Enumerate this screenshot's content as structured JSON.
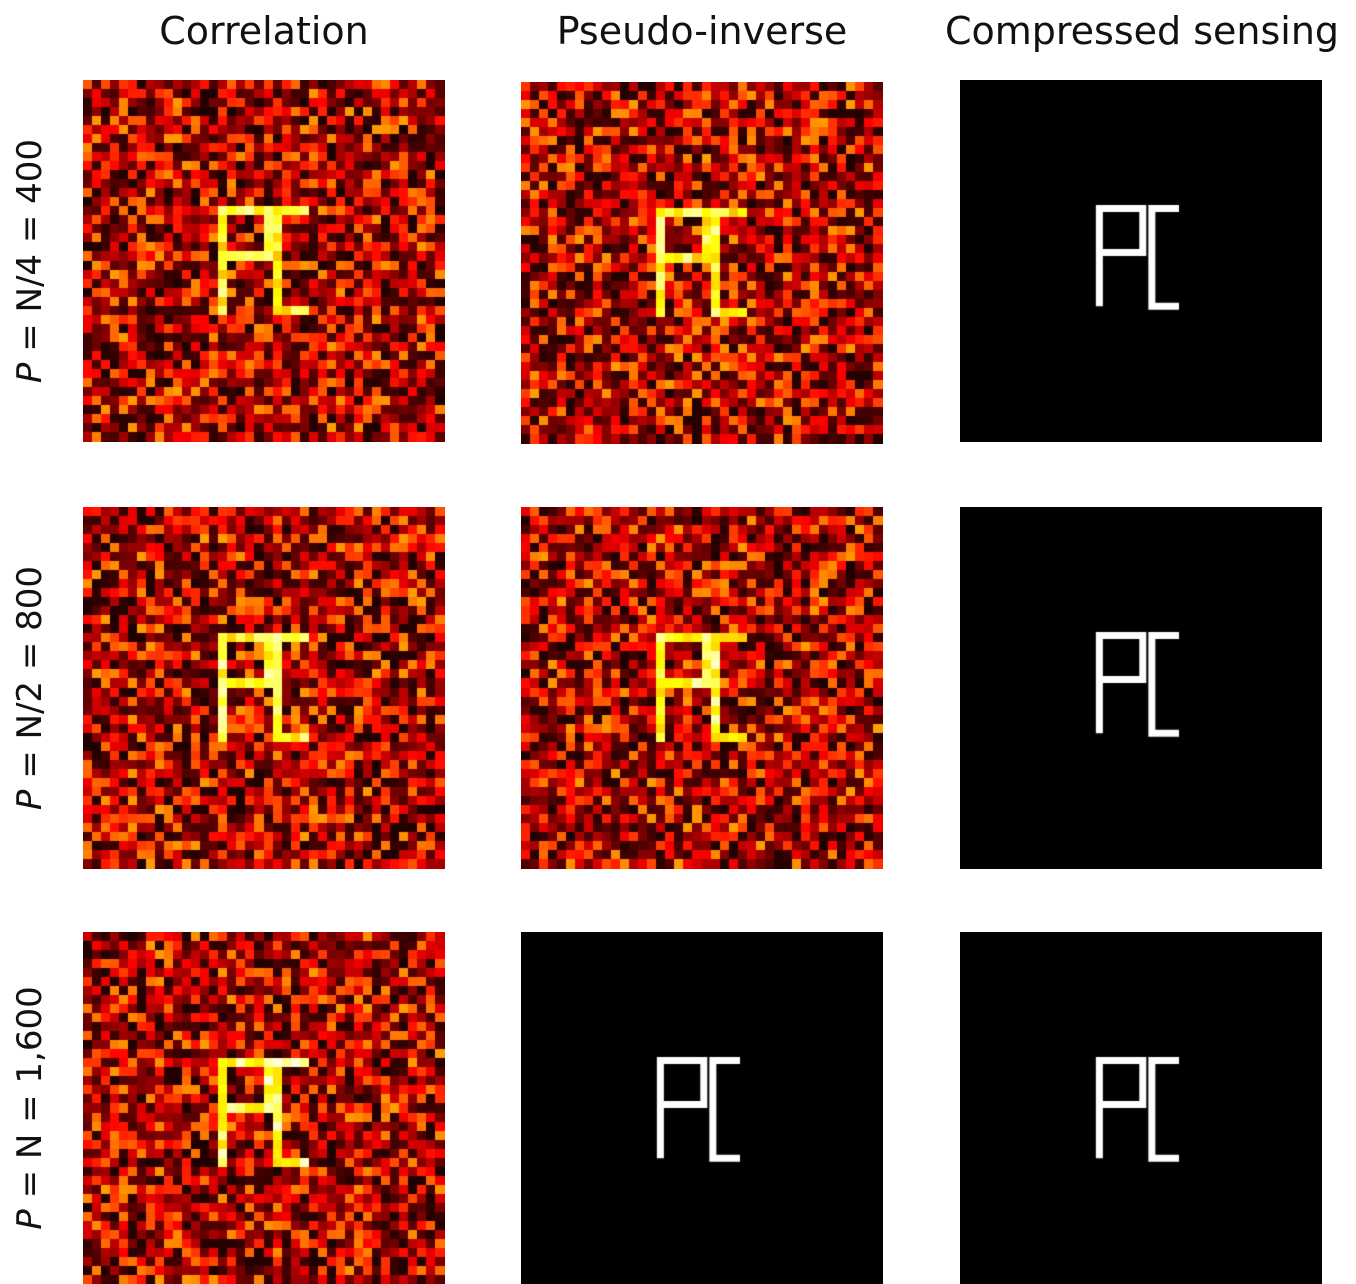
{
  "columns": [
    "Correlation",
    "Pseudo-inverse",
    "Compressed sensing"
  ],
  "rows": [
    {
      "var": "P",
      "label_rest": " = N/4 = 400"
    },
    {
      "var": "P",
      "label_rest": " = N/2 = 800"
    },
    {
      "var": "P",
      "label_rest": " = N = 1,600"
    }
  ],
  "image_grid": {
    "pixels_per_side": 40,
    "text_in_image": "PC"
  },
  "panels": [
    [
      {
        "method": "Correlation",
        "style": "noisy"
      },
      {
        "method": "Pseudo-inverse",
        "style": "noisy"
      },
      {
        "method": "Compressed sensing",
        "style": "clean"
      }
    ],
    [
      {
        "method": "Correlation",
        "style": "noisy"
      },
      {
        "method": "Pseudo-inverse",
        "style": "noisy"
      },
      {
        "method": "Compressed sensing",
        "style": "clean"
      }
    ],
    [
      {
        "method": "Correlation",
        "style": "noisy"
      },
      {
        "method": "Pseudo-inverse",
        "style": "clean"
      },
      {
        "method": "Compressed sensing",
        "style": "clean"
      }
    ]
  ],
  "colors": {
    "background": "#ffffff",
    "colormap": "hot",
    "clean_fg": "#ffffff",
    "clean_bg": "#000000"
  }
}
